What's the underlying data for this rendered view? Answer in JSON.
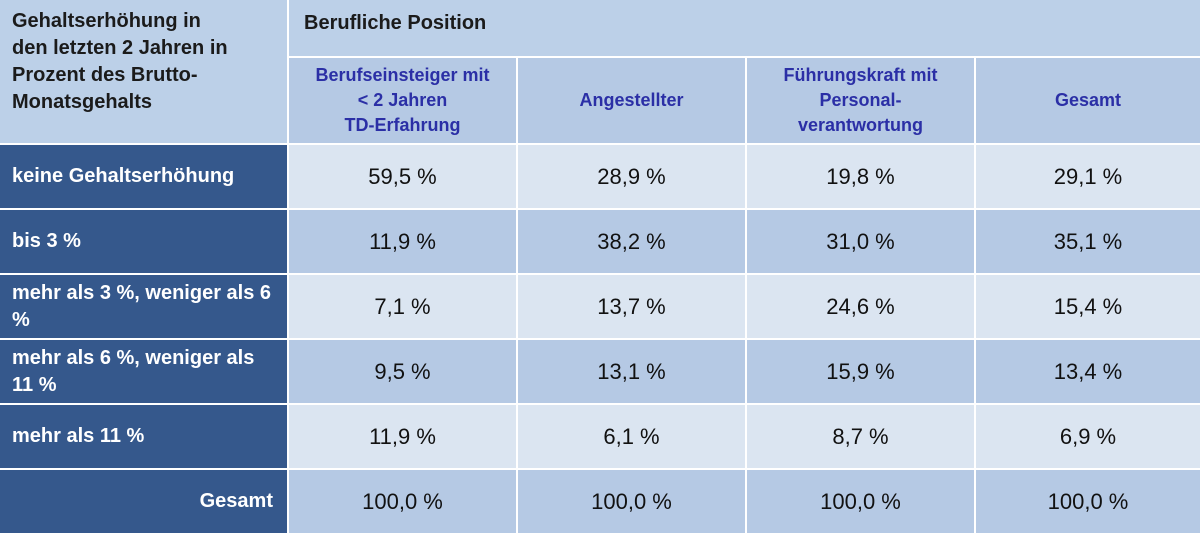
{
  "chart_data": {
    "type": "table",
    "corner_label": "Gehaltserhöhung in\nden letzten 2 Jahren in\nProzent des Brutto-\nMonatsgehalts",
    "group_header": "Berufliche Position",
    "columns": [
      "Berufseinsteiger mit\n< 2 Jahren\nTD-Erfahrung",
      "Angestellter",
      "Führungskraft mit\nPersonal-\nverantwortung",
      "Gesamt"
    ],
    "rows": [
      {
        "label": "keine Gehaltserhöhung",
        "values": [
          "59,5 %",
          "28,9 %",
          "19,8 %",
          "29,1 %"
        ]
      },
      {
        "label": "bis 3 %",
        "values": [
          "11,9 %",
          "38,2 %",
          "31,0 %",
          "35,1 %"
        ]
      },
      {
        "label": "mehr als 3 %, weniger als 6 %",
        "values": [
          "7,1 %",
          "13,7 %",
          "24,6 %",
          "15,4 %"
        ]
      },
      {
        "label": "mehr als 6 %, weniger als 11 %",
        "values": [
          "9,5 %",
          "13,1 %",
          "15,9 %",
          "13,4 %"
        ]
      },
      {
        "label": "mehr als 11 %",
        "values": [
          "11,9 %",
          "6,1 %",
          "8,7 %",
          "6,9 %"
        ]
      },
      {
        "label": "Gesamt",
        "values": [
          "100,0 %",
          "100,0 %",
          "100,0 %",
          "100,0 %"
        ]
      }
    ]
  }
}
